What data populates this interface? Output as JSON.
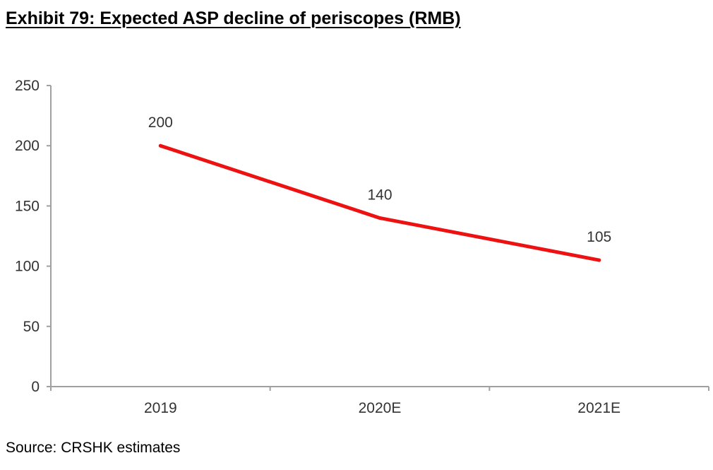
{
  "header": {
    "title": "Exhibit 79: Expected ASP decline of periscopes (RMB)"
  },
  "footer": {
    "source": "Source: CRSHK estimates"
  },
  "chart_data": {
    "type": "line",
    "title": "Exhibit 79: Expected ASP decline of periscopes (RMB)",
    "xlabel": "",
    "ylabel": "",
    "categories": [
      "2019",
      "2020E",
      "2021E"
    ],
    "series": [
      {
        "values": [
          200,
          140,
          105
        ],
        "color": "#ee1111"
      }
    ],
    "data_labels": [
      "200",
      "140",
      "105"
    ],
    "ylim": [
      0,
      250
    ],
    "yticks": [
      0,
      50,
      100,
      150,
      200,
      250
    ],
    "grid": false,
    "legend": "none"
  }
}
